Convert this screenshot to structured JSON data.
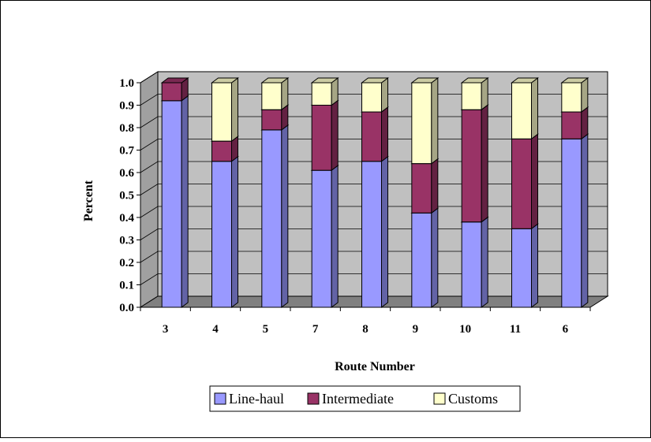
{
  "chart_data": {
    "type": "bar",
    "stacked": true,
    "three_d": true,
    "categories": [
      "3",
      "4",
      "5",
      "7",
      "8",
      "9",
      "10",
      "11",
      "6"
    ],
    "series": [
      {
        "name": "Line-haul",
        "color": "#9999ff",
        "values": [
          0.92,
          0.65,
          0.79,
          0.61,
          0.65,
          0.42,
          0.38,
          0.35,
          0.75
        ]
      },
      {
        "name": "Intermediate",
        "color": "#993366",
        "values": [
          0.08,
          0.09,
          0.09,
          0.29,
          0.22,
          0.22,
          0.5,
          0.4,
          0.12
        ]
      },
      {
        "name": "Customs",
        "color": "#ffffcc",
        "values": [
          0.0,
          0.26,
          0.12,
          0.1,
          0.13,
          0.36,
          0.12,
          0.25,
          0.13
        ]
      }
    ],
    "xlabel": "Route Number",
    "ylabel": "Percent",
    "ylim": [
      0,
      1.0
    ],
    "yticks": [
      "0.0",
      "0.1",
      "0.2",
      "0.3",
      "0.4",
      "0.5",
      "0.6",
      "0.7",
      "0.8",
      "0.9",
      "1.0"
    ],
    "grid": true,
    "legend_position": "bottom",
    "wall_color": "#c0c0c0",
    "floor_color": "#808080"
  }
}
